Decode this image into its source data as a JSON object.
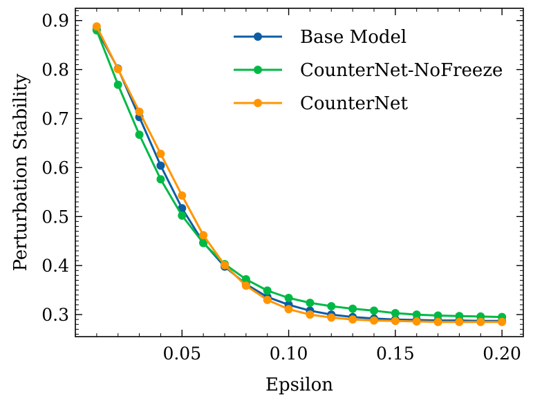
{
  "chart_data": {
    "type": "line",
    "title": "",
    "xlabel": "Epsilon",
    "ylabel": "Perturbation Stability",
    "xlim": [
      0.0,
      0.21
    ],
    "ylim": [
      0.255,
      0.925
    ],
    "xticks": [
      0.05,
      0.1,
      0.15,
      0.2
    ],
    "xtick_labels": [
      "0.05",
      "0.10",
      "0.15",
      "0.20"
    ],
    "yticks": [
      0.3,
      0.4,
      0.5,
      0.6,
      0.7,
      0.8,
      0.9
    ],
    "ytick_labels": [
      "0.3",
      "0.4",
      "0.5",
      "0.6",
      "0.7",
      "0.8",
      "0.9"
    ],
    "grid": false,
    "legend_position": "top-right",
    "x": [
      0.01,
      0.02,
      0.03,
      0.04,
      0.05,
      0.06,
      0.07,
      0.08,
      0.09,
      0.1,
      0.11,
      0.12,
      0.13,
      0.14,
      0.15,
      0.16,
      0.17,
      0.18,
      0.19,
      0.2
    ],
    "series": [
      {
        "name": "Base Model",
        "color": "#0C5DA5",
        "values": [
          0.882,
          0.802,
          0.703,
          0.604,
          0.517,
          0.447,
          0.398,
          0.362,
          0.336,
          0.32,
          0.308,
          0.3,
          0.295,
          0.292,
          0.29,
          0.289,
          0.288,
          0.288,
          0.287,
          0.287
        ]
      },
      {
        "name": "CounterNet-NoFreeze",
        "color": "#00B945",
        "values": [
          0.88,
          0.769,
          0.667,
          0.576,
          0.502,
          0.446,
          0.403,
          0.372,
          0.349,
          0.334,
          0.324,
          0.317,
          0.312,
          0.308,
          0.303,
          0.3,
          0.298,
          0.297,
          0.296,
          0.295
        ]
      },
      {
        "name": "CounterNet",
        "color": "#FF9500",
        "values": [
          0.888,
          0.801,
          0.714,
          0.628,
          0.543,
          0.462,
          0.401,
          0.359,
          0.33,
          0.311,
          0.3,
          0.294,
          0.29,
          0.288,
          0.287,
          0.286,
          0.285,
          0.285,
          0.285,
          0.285
        ]
      }
    ]
  }
}
